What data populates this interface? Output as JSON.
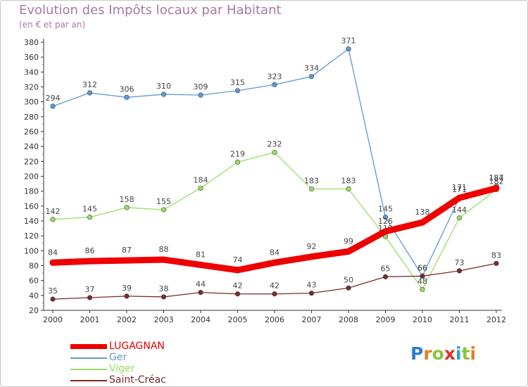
{
  "title": "Evolution des Impôts locaux par Habitant",
  "subtitle": "(en € et par an)",
  "brand": "Proxiti",
  "colors": {
    "title": "#a87aa0",
    "LUGAGNAN": "#ee0000",
    "Ger": "#5b9bd5",
    "Viger": "#99dd66",
    "Saint-Créac": "#7a2a2a"
  },
  "chart_data": {
    "type": "line",
    "title": "Evolution des Impôts locaux par Habitant",
    "subtitle": "(en € et par an)",
    "xlabel": "",
    "ylabel": "",
    "categories": [
      "2000",
      "2001",
      "2002",
      "2003",
      "2004",
      "2005",
      "2006",
      "2007",
      "2008",
      "2009",
      "2010",
      "2011",
      "2012"
    ],
    "ylim": [
      20,
      380
    ],
    "yticks": [
      20,
      40,
      60,
      80,
      100,
      120,
      140,
      160,
      180,
      200,
      220,
      240,
      260,
      280,
      300,
      320,
      340,
      360,
      380
    ],
    "grid": false,
    "legend": "bottom-left",
    "series": [
      {
        "name": "Ger",
        "color": "#5b9bd5",
        "values": [
          294,
          312,
          306,
          310,
          309,
          315,
          323,
          334,
          371,
          145,
          66,
          171,
          187
        ]
      },
      {
        "name": "Viger",
        "color": "#99dd66",
        "values": [
          142,
          145,
          158,
          155,
          184,
          219,
          232,
          183,
          183,
          119,
          48,
          144,
          182
        ]
      },
      {
        "name": "Saint-Créac",
        "color": "#7a2a2a",
        "values": [
          35,
          37,
          39,
          38,
          44,
          42,
          42,
          43,
          50,
          65,
          66,
          73,
          83
        ]
      },
      {
        "name": "LUGAGNAN",
        "color": "#ee0000",
        "values": [
          84,
          86,
          87,
          88,
          81,
          74,
          84,
          92,
          99,
          126,
          138,
          171,
          184
        ]
      }
    ]
  },
  "legend": [
    {
      "label": "LUGAGNAN"
    },
    {
      "label": "Ger"
    },
    {
      "label": "Viger"
    },
    {
      "label": "Saint-Créac"
    }
  ]
}
